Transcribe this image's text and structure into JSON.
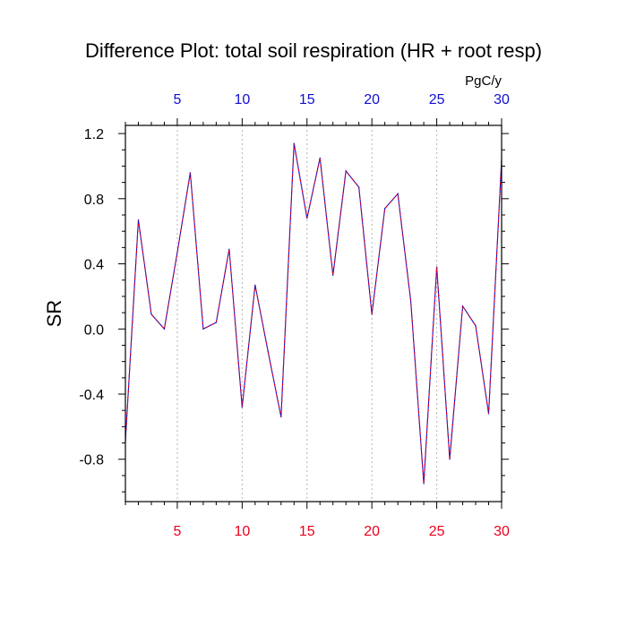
{
  "chart_data": {
    "type": "line",
    "title": "Difference Plot: total soil respiration (HR + root resp)",
    "units": "PgC/y",
    "ylabel": "SR",
    "xlabel": "",
    "xlim": [
      1,
      30
    ],
    "ylim": [
      -1.06,
      1.25
    ],
    "x_ticks": [
      5,
      10,
      15,
      20,
      25,
      30
    ],
    "y_ticks": [
      1.2,
      0.8,
      0.4,
      0.0,
      -0.4,
      -0.8
    ],
    "y_tick_labels": [
      "1.2",
      "0.8",
      "0.4",
      "0.0",
      "-0.4",
      "-0.8"
    ],
    "grid": "vertical dotted at major x ticks",
    "colors": {
      "bottom_axis": "#e8001c",
      "top_axis": "#1010d0",
      "line_a": "#e8001c",
      "line_b": "#1010d0"
    },
    "series": [
      {
        "x": [
          1,
          2,
          3,
          4,
          5,
          6,
          7,
          8,
          9,
          10,
          11,
          12,
          13,
          14,
          15,
          16,
          17,
          18,
          19,
          20,
          21,
          22,
          23,
          24,
          25,
          26,
          27,
          28,
          29,
          30
        ],
        "values": [
          -0.69,
          0.67,
          0.09,
          0.0,
          0.47,
          0.96,
          0.0,
          0.04,
          0.49,
          -0.48,
          0.27,
          -0.14,
          -0.54,
          1.14,
          0.68,
          1.05,
          0.33,
          0.97,
          0.87,
          0.09,
          0.74,
          0.83,
          0.17,
          -0.95,
          0.38,
          -0.8,
          0.14,
          0.02,
          -0.52,
          1.04
        ]
      }
    ]
  }
}
